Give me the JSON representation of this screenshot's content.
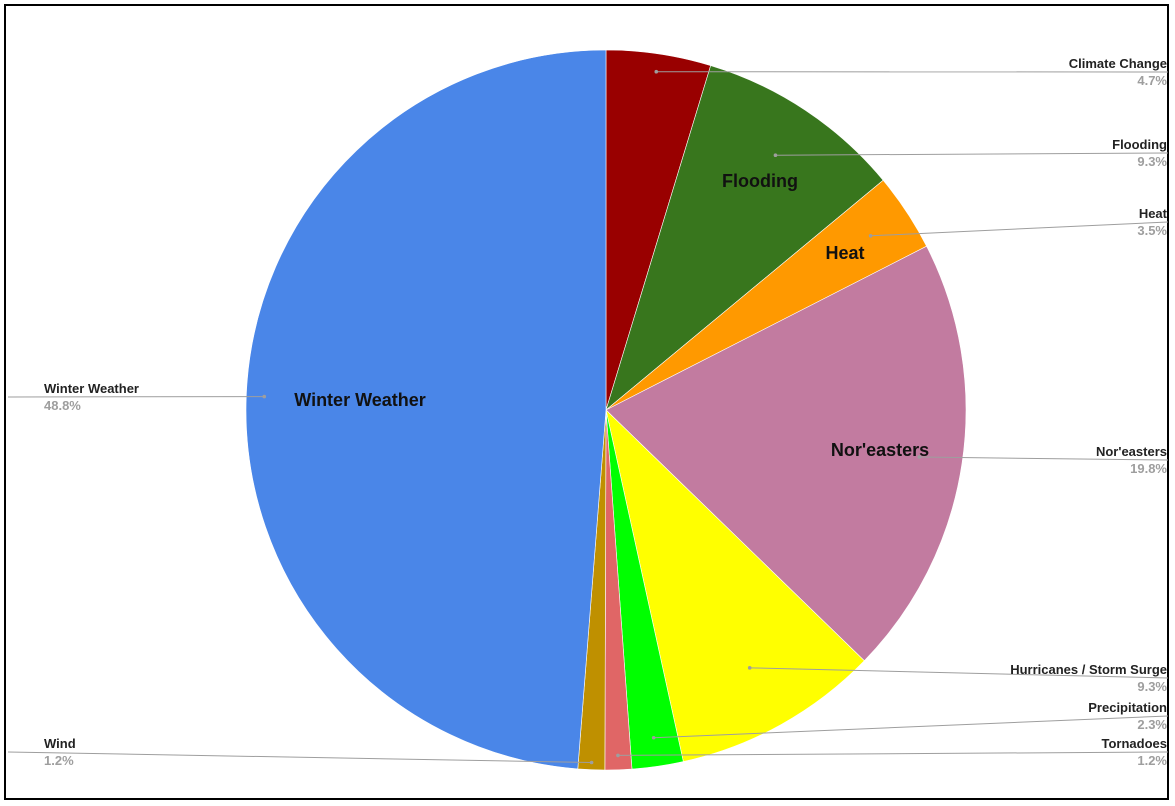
{
  "chart_data": {
    "type": "pie",
    "start_angle_deg": 0,
    "direction": "clockwise",
    "slices": [
      {
        "label": "Climate Change",
        "value": 4.7,
        "pct": "4.7%",
        "color": "#990000",
        "inner_label": "",
        "callout_side": "right"
      },
      {
        "label": "Flooding",
        "value": 9.3,
        "pct": "9.3%",
        "color": "#38761d",
        "inner_label": "Flooding",
        "callout_side": "right"
      },
      {
        "label": "Heat",
        "value": 3.5,
        "pct": "3.5%",
        "color": "#ff9900",
        "inner_label": "Heat",
        "callout_side": "right"
      },
      {
        "label": "Nor'easters",
        "value": 19.8,
        "pct": "19.8%",
        "color": "#c27ba0",
        "inner_label": "Nor'easters",
        "callout_side": "right"
      },
      {
        "label": "Hurricanes / Storm Surge",
        "value": 9.3,
        "pct": "9.3%",
        "color": "#ffff00",
        "inner_label": "",
        "callout_side": "right"
      },
      {
        "label": "Precipitation",
        "value": 2.3,
        "pct": "2.3%",
        "color": "#00ff00",
        "inner_label": "",
        "callout_side": "right"
      },
      {
        "label": "Tornadoes",
        "value": 1.2,
        "pct": "1.2%",
        "color": "#e06666",
        "inner_label": "",
        "callout_side": "right"
      },
      {
        "label": "Wind",
        "value": 1.2,
        "pct": "1.2%",
        "color": "#bf9000",
        "inner_label": "",
        "callout_side": "left"
      },
      {
        "label": "Winter Weather",
        "value": 48.8,
        "pct": "48.8%",
        "color": "#4a86e8",
        "inner_label": "Winter Weather",
        "callout_side": "left"
      }
    ]
  }
}
